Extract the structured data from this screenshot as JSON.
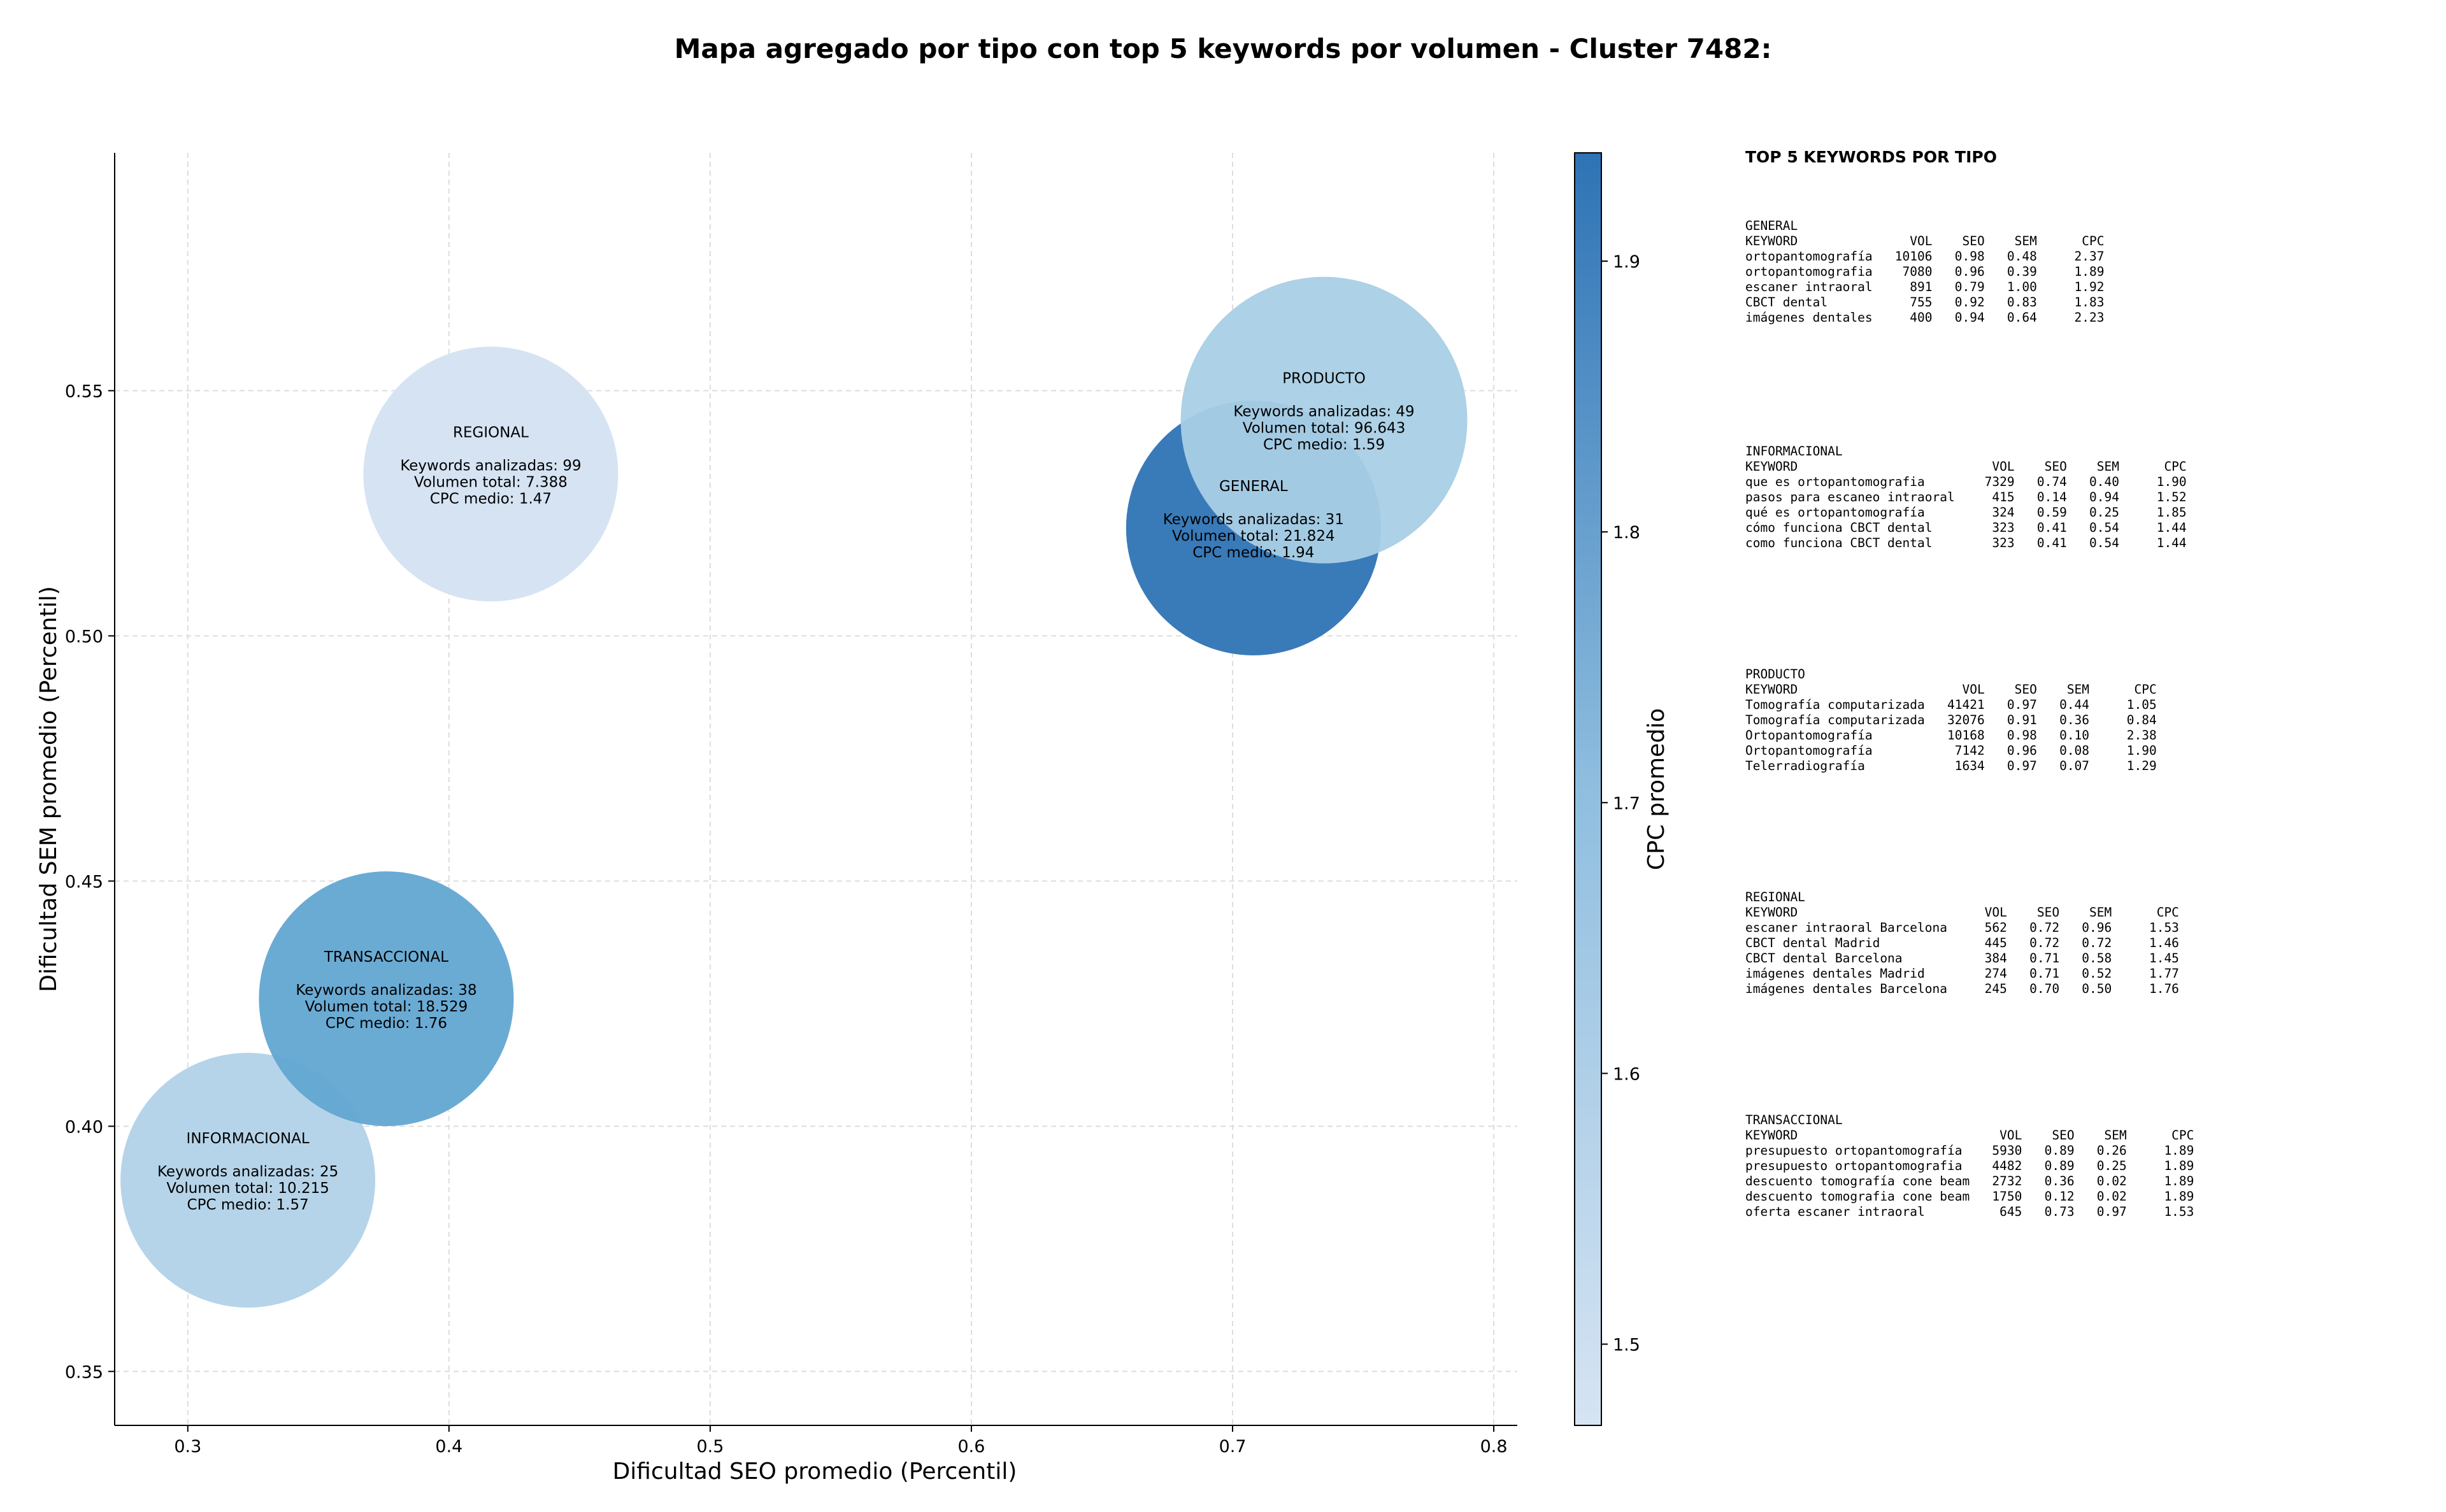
{
  "title": "Mapa agregado por tipo con top 5 keywords por volumen - Cluster 7482:",
  "chart_data": {
    "type": "scatter",
    "xlabel": "Dificultad SEO promedio (Percentil)",
    "ylabel": "Dificultad SEM promedio (Percentil)",
    "xlim": [
      0.272,
      0.809
    ],
    "ylim": [
      0.339,
      0.5985
    ],
    "xticks": [
      0.3,
      0.4,
      0.5,
      0.6,
      0.7,
      0.8
    ],
    "xtick_labels": [
      "0.3",
      "0.4",
      "0.5",
      "0.6",
      "0.7",
      "0.8"
    ],
    "yticks": [
      0.35,
      0.4,
      0.45,
      0.5,
      0.55
    ],
    "ytick_labels": [
      "0.35",
      "0.40",
      "0.45",
      "0.50",
      "0.55"
    ],
    "grid": true,
    "bubble_size": "Volumen total",
    "colorbar": {
      "label": "CPC promedio",
      "range": [
        1.47,
        1.94
      ],
      "ticks": [
        1.5,
        1.6,
        1.7,
        1.8,
        1.9
      ],
      "tick_labels": [
        "1.5",
        "1.6",
        "1.7",
        "1.8",
        "1.9"
      ],
      "color_low": "#d6e4f3",
      "color_high": "#2e73b5"
    },
    "points": [
      {
        "tipo": "REGIONAL",
        "x": 0.416,
        "y": 0.533,
        "keywords": 99,
        "volumen": 7388,
        "cpc": 1.47,
        "color": "#d4e2f2",
        "label_lines": [
          "REGIONAL",
          "",
          "Keywords analizadas: 99",
          "Volumen total: 7.388",
          "CPC medio: 1.47"
        ]
      },
      {
        "tipo": "INFORMACIONAL",
        "x": 0.323,
        "y": 0.389,
        "keywords": 25,
        "volumen": 10215,
        "cpc": 1.57,
        "color": "#b2d2e8",
        "label_lines": [
          "INFORMACIONAL",
          "",
          "Keywords analizadas: 25",
          "Volumen total: 10.215",
          "CPC medio: 1.57"
        ]
      },
      {
        "tipo": "TRANSACCIONAL",
        "x": 0.376,
        "y": 0.426,
        "keywords": 38,
        "volumen": 18529,
        "cpc": 1.76,
        "color": "#62a6d2",
        "label_lines": [
          "TRANSACCIONAL",
          "",
          "Keywords analizadas: 38",
          "Volumen total: 18.529",
          "CPC medio: 1.76"
        ]
      },
      {
        "tipo": "GENERAL",
        "x": 0.708,
        "y": 0.522,
        "keywords": 31,
        "volumen": 21824,
        "cpc": 1.94,
        "color": "#2e73b5",
        "label_lines": [
          "GENERAL",
          "",
          "Keywords analizadas: 31",
          "Volumen total: 21.824",
          "CPC medio: 1.94"
        ]
      },
      {
        "tipo": "PRODUCTO",
        "x": 0.735,
        "y": 0.544,
        "keywords": 49,
        "volumen": 96643,
        "cpc": 1.59,
        "color": "#a9cfe5",
        "label_lines": [
          "PRODUCTO",
          "",
          "Keywords analizadas: 49",
          "Volumen total: 96.643",
          "CPC medio: 1.59"
        ]
      }
    ]
  },
  "panel": {
    "title": "TOP 5 KEYWORDS POR TIPO",
    "sections": [
      {
        "name": "GENERAL",
        "lines": [
          "KEYWORD               VOL    SEO    SEM      CPC",
          "ortopantomografía   10106   0.98   0.48     2.37",
          "ortopantomografia    7080   0.96   0.39     1.89",
          "escaner intraoral     891   0.79   1.00     1.92",
          "CBCT dental           755   0.92   0.83     1.83",
          "imágenes dentales     400   0.94   0.64     2.23"
        ]
      },
      {
        "name": "INFORMACIONAL",
        "lines": [
          "KEYWORD                          VOL    SEO    SEM      CPC",
          "que es ortopantomografia        7329   0.74   0.40     1.90",
          "pasos para escaneo intraoral     415   0.14   0.94     1.52",
          "qué es ortopantomografía         324   0.59   0.25     1.85",
          "cómo funciona CBCT dental        323   0.41   0.54     1.44",
          "como funciona CBCT dental        323   0.41   0.54     1.44"
        ]
      },
      {
        "name": "PRODUCTO",
        "lines": [
          "KEYWORD                      VOL    SEO    SEM      CPC",
          "Tomografía computarizada   41421   0.97   0.44     1.05",
          "Tomografía computarizada   32076   0.91   0.36     0.84",
          "Ortopantomografía          10168   0.98   0.10     2.38",
          "Ortopantomografía           7142   0.96   0.08     1.90",
          "Telerradiografía            1634   0.97   0.07     1.29"
        ]
      },
      {
        "name": "REGIONAL",
        "lines": [
          "KEYWORD                         VOL    SEO    SEM      CPC",
          "escaner intraoral Barcelona     562   0.72   0.96     1.53",
          "CBCT dental Madrid              445   0.72   0.72     1.46",
          "CBCT dental Barcelona           384   0.71   0.58     1.45",
          "imágenes dentales Madrid        274   0.71   0.52     1.77",
          "imágenes dentales Barcelona     245   0.70   0.50     1.76"
        ]
      },
      {
        "name": "TRANSACCIONAL",
        "lines": [
          "KEYWORD                           VOL    SEO    SEM      CPC",
          "presupuesto ortopantomografía    5930   0.89   0.26     1.89",
          "presupuesto ortopantomografia    4482   0.89   0.25     1.89",
          "descuento tomografía cone beam   2732   0.36   0.02     1.89",
          "descuento tomografia cone beam   1750   0.12   0.02     1.89",
          "oferta escaner intraoral          645   0.73   0.97     1.53"
        ]
      }
    ]
  }
}
